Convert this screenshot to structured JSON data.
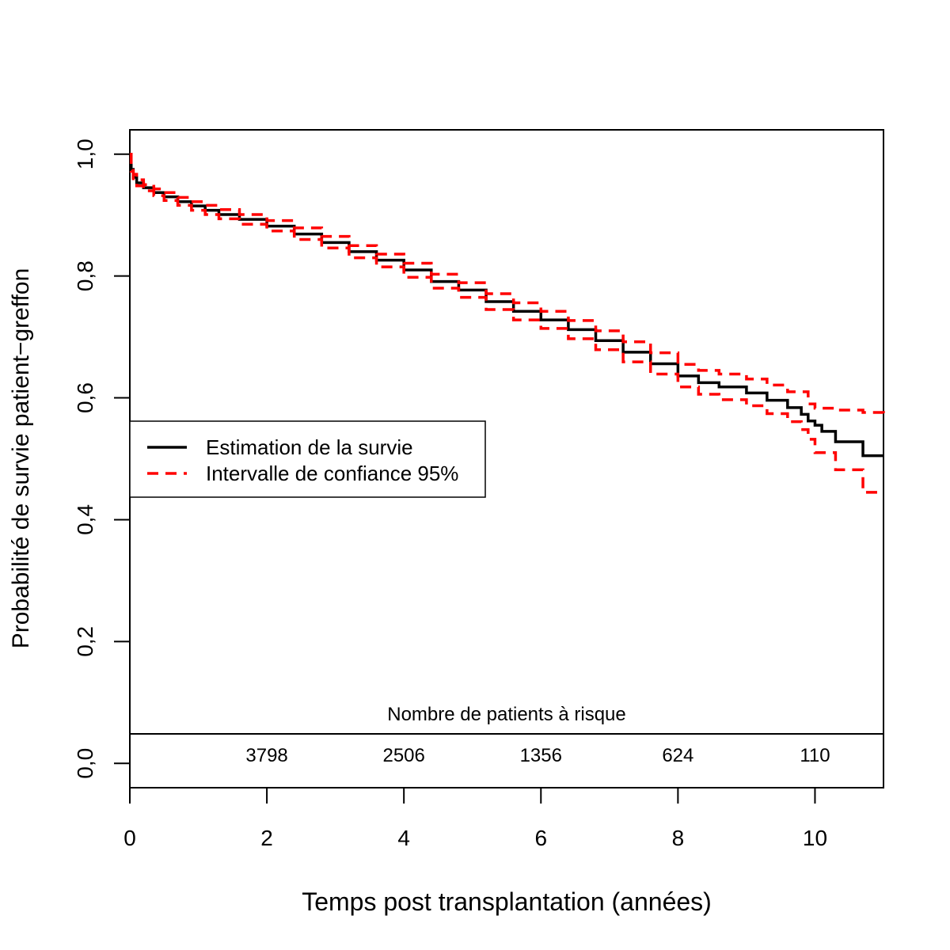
{
  "chart_data": {
    "type": "line",
    "xlabel": "Temps post transplantation (années)",
    "ylabel": "Probabilité de survie patient−greffon",
    "xlim": [
      0,
      11
    ],
    "ylim": [
      -0.04,
      1.04
    ],
    "x_ticks": [
      0,
      2,
      4,
      6,
      8,
      10
    ],
    "x_tick_labels": [
      "0",
      "2",
      "4",
      "6",
      "8",
      "10"
    ],
    "y_ticks": [
      0.0,
      0.2,
      0.4,
      0.6,
      0.8,
      1.0
    ],
    "y_tick_labels": [
      "0,0",
      "0,2",
      "0,4",
      "0,6",
      "0,8",
      "1,0"
    ],
    "grid": false,
    "legend": {
      "position": "middle-left",
      "entries": [
        {
          "label": "Estimation de la survie",
          "color": "#000000",
          "style": "solid"
        },
        {
          "label": "Intervalle de confiance 95%",
          "color": "#ff0000",
          "style": "dashed"
        }
      ]
    },
    "risk_table": {
      "title": "Nombre de patients à risque",
      "x": [
        2,
        4,
        6,
        8,
        10
      ],
      "counts": [
        "3798",
        "2506",
        "1356",
        "624",
        "110"
      ]
    },
    "series": [
      {
        "name": "Estimation de la survie",
        "color": "#000000",
        "style": "solid",
        "step": true,
        "x": [
          0,
          0.02,
          0.05,
          0.1,
          0.2,
          0.35,
          0.5,
          0.7,
          0.9,
          1.1,
          1.3,
          1.6,
          2.0,
          2.4,
          2.8,
          3.2,
          3.6,
          4.0,
          4.4,
          4.8,
          5.2,
          5.6,
          6.0,
          6.4,
          6.8,
          7.2,
          7.6,
          8.0,
          8.3,
          8.6,
          9.0,
          9.3,
          9.6,
          9.8,
          9.9,
          10.0,
          10.1,
          10.3,
          10.7,
          11.0
        ],
        "values": [
          1.0,
          0.975,
          0.962,
          0.953,
          0.945,
          0.937,
          0.93,
          0.922,
          0.915,
          0.908,
          0.901,
          0.893,
          0.882,
          0.869,
          0.855,
          0.84,
          0.826,
          0.81,
          0.791,
          0.777,
          0.758,
          0.742,
          0.728,
          0.712,
          0.694,
          0.675,
          0.656,
          0.636,
          0.625,
          0.618,
          0.608,
          0.596,
          0.584,
          0.573,
          0.562,
          0.555,
          0.545,
          0.528,
          0.505,
          0.505
        ]
      },
      {
        "name": "Intervalle de confiance 95%",
        "color": "#ff0000",
        "style": "dashed",
        "step": true,
        "x": [
          0,
          0.02,
          0.05,
          0.1,
          0.2,
          0.35,
          0.5,
          0.7,
          0.9,
          1.1,
          1.3,
          1.6,
          2.0,
          2.4,
          2.8,
          3.2,
          3.6,
          4.0,
          4.4,
          4.8,
          5.2,
          5.6,
          6.0,
          6.4,
          6.8,
          7.2,
          7.6,
          8.0,
          8.3,
          8.6,
          9.0,
          9.3,
          9.6,
          9.9,
          10.0,
          10.3,
          10.7,
          11.0
        ],
        "values": [
          1.0,
          0.978,
          0.967,
          0.958,
          0.95,
          0.943,
          0.937,
          0.929,
          0.922,
          0.916,
          0.909,
          0.901,
          0.891,
          0.879,
          0.865,
          0.85,
          0.836,
          0.821,
          0.803,
          0.789,
          0.771,
          0.756,
          0.742,
          0.727,
          0.71,
          0.692,
          0.674,
          0.655,
          0.645,
          0.639,
          0.631,
          0.621,
          0.61,
          0.59,
          0.583,
          0.58,
          0.576,
          0.574
        ]
      },
      {
        "name": "",
        "color": "#ff0000",
        "style": "dashed",
        "step": true,
        "x": [
          0,
          0.02,
          0.05,
          0.1,
          0.2,
          0.35,
          0.5,
          0.7,
          0.9,
          1.1,
          1.3,
          1.6,
          2.0,
          2.4,
          2.8,
          3.2,
          3.6,
          4.0,
          4.4,
          4.8,
          5.2,
          5.6,
          6.0,
          6.4,
          6.8,
          7.2,
          7.6,
          8.0,
          8.3,
          8.6,
          9.0,
          9.3,
          9.6,
          9.8,
          9.9,
          10.0,
          10.3,
          10.7,
          11.0
        ],
        "values": [
          1.0,
          0.972,
          0.957,
          0.948,
          0.94,
          0.932,
          0.924,
          0.916,
          0.908,
          0.901,
          0.894,
          0.885,
          0.874,
          0.86,
          0.846,
          0.83,
          0.815,
          0.798,
          0.78,
          0.765,
          0.745,
          0.728,
          0.714,
          0.697,
          0.679,
          0.659,
          0.639,
          0.618,
          0.606,
          0.597,
          0.587,
          0.574,
          0.561,
          0.548,
          0.532,
          0.51,
          0.482,
          0.445,
          0.445
        ]
      }
    ]
  }
}
